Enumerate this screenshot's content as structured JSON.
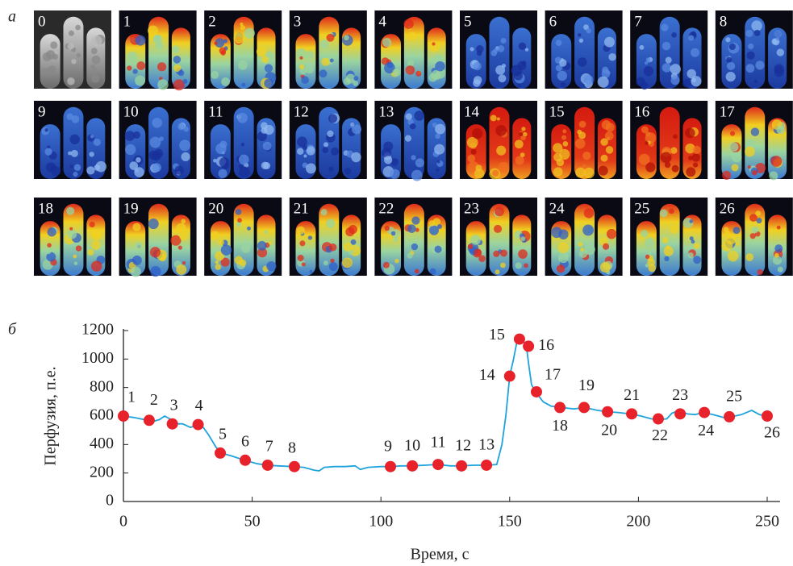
{
  "panels": {
    "a": "а",
    "b": "б"
  },
  "images": {
    "labels": [
      "0",
      "1",
      "2",
      "3",
      "4",
      "5",
      "6",
      "7",
      "8",
      "9",
      "10",
      "11",
      "12",
      "13",
      "14",
      "15",
      "16",
      "17",
      "18",
      "19",
      "20",
      "21",
      "22",
      "23",
      "24",
      "25",
      "26"
    ]
  },
  "chart_data": {
    "type": "line",
    "x_label": "Время, с",
    "y_label": "Перфузия, п.е.",
    "xlim": [
      0,
      255
    ],
    "xticks": [
      0,
      50,
      100,
      150,
      200,
      250
    ],
    "ylim": [
      0,
      1200
    ],
    "yticks": [
      0,
      200,
      400,
      600,
      800,
      1000,
      1200
    ],
    "series": [
      {
        "color": "#1ea3dc",
        "x": [
          0,
          4,
          8,
          10,
          12,
          14,
          16,
          18,
          20,
          23,
          26,
          29,
          31,
          33,
          36,
          38,
          42,
          47,
          52,
          56,
          60,
          66,
          70,
          74,
          76,
          78,
          82,
          86,
          90,
          92,
          95,
          100,
          104,
          108,
          112,
          117,
          122,
          127,
          131,
          136,
          141,
          145,
          147,
          148.5,
          150,
          151.5,
          153,
          154,
          155.5,
          156.5,
          157.5,
          158.5,
          160,
          163,
          166,
          170,
          175,
          179,
          184,
          188,
          192,
          197,
          201,
          205,
          208,
          211,
          213,
          216,
          219,
          222,
          225,
          229,
          233,
          236,
          240,
          244,
          247,
          250
        ],
        "values": [
          600,
          590,
          575,
          570,
          565,
          575,
          600,
          580,
          545,
          545,
          520,
          540,
          520,
          470,
          380,
          340,
          320,
          290,
          265,
          255,
          250,
          245,
          240,
          220,
          215,
          240,
          245,
          245,
          250,
          225,
          240,
          245,
          245,
          250,
          250,
          255,
          260,
          250,
          250,
          255,
          255,
          260,
          400,
          600,
          880,
          1000,
          1140,
          1150,
          1120,
          1090,
          950,
          820,
          770,
          700,
          670,
          660,
          650,
          660,
          640,
          630,
          625,
          615,
          600,
          580,
          575,
          580,
          620,
          640,
          615,
          610,
          625,
          610,
          590,
          595,
          610,
          640,
          610,
          600
        ]
      },
      {
        "color": "#e8222a",
        "marker": "circle",
        "x": [
          0,
          10,
          19,
          29,
          37.6,
          47.3,
          56,
          66.4,
          103.7,
          112.2,
          122.2,
          131.3,
          141,
          150,
          153.8,
          157.3,
          160.4,
          169.5,
          178.9,
          188,
          197.4,
          207.7,
          216.2,
          225.6,
          235.3,
          250
        ],
        "values": [
          600,
          570,
          545,
          540,
          340,
          290,
          255,
          245,
          245,
          250,
          260,
          250,
          255,
          880,
          1140,
          1090,
          770,
          660,
          660,
          630,
          615,
          580,
          615,
          625,
          595,
          600
        ],
        "labels": [
          "1",
          "2",
          "3",
          "4",
          "5",
          "6",
          "7",
          "8",
          "9",
          "10",
          "11",
          "12",
          "13",
          "14",
          "15",
          "16",
          "17",
          "18",
          "19",
          "20",
          "21",
          "22",
          "23",
          "24",
          "25",
          "26"
        ]
      }
    ]
  }
}
